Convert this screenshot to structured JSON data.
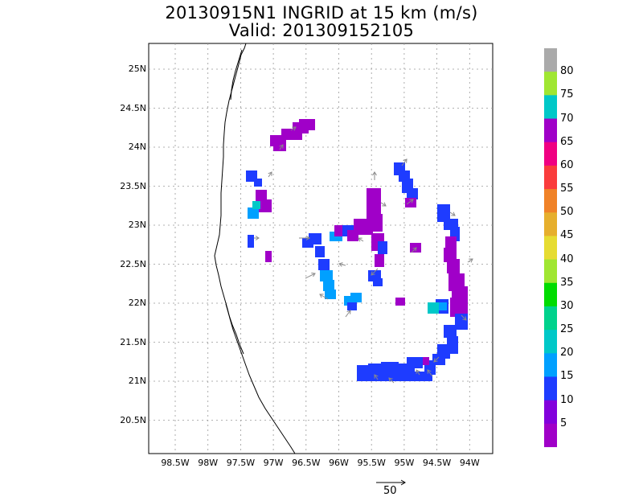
{
  "title_line1": "20130915N1 INGRID at 15 km (m/s)",
  "title_line2": "Valid: 201309152105",
  "lat_labels": [
    "25N",
    "24.5N",
    "24N",
    "23.5N",
    "23N",
    "22.5N",
    "22N",
    "21.5N",
    "21N",
    "20.5N"
  ],
  "lon_labels": [
    "98.5W",
    "98W",
    "97.5W",
    "97W",
    "96.5W",
    "96W",
    "95.5W",
    "95W",
    "94.5W",
    "94W"
  ],
  "colorbar": {
    "labels": [
      "5",
      "10",
      "15",
      "20",
      "25",
      "30",
      "35",
      "40",
      "45",
      "50",
      "55",
      "60",
      "65",
      "70",
      "75",
      "80"
    ],
    "colors": [
      "#a000c8",
      "#8200dc",
      "#1e3cff",
      "#00a0ff",
      "#00c8c8",
      "#00d28c",
      "#00dc00",
      "#a0e632",
      "#e6dc32",
      "#e6af2d",
      "#f08228",
      "#fa3c3c",
      "#f00082",
      "#a000c8",
      "#00c8c8",
      "#a0e632",
      "#aaaaaa"
    ]
  },
  "reference_vector_label": "50",
  "colors": {
    "coast": "#000000",
    "grid": "#999999",
    "arrows": "#8a8a8a"
  }
}
